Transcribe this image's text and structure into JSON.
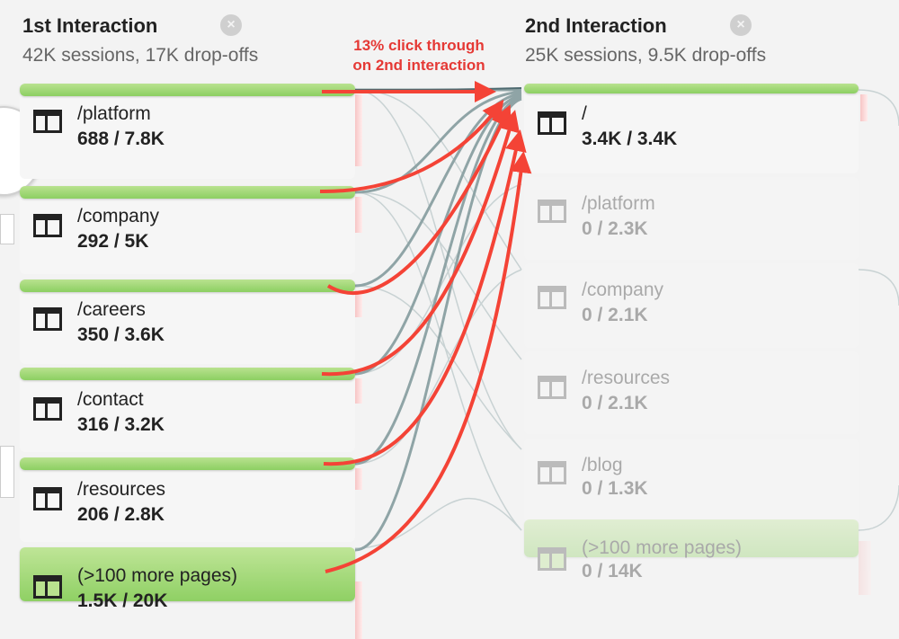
{
  "columns": [
    {
      "title": "1st Interaction",
      "subtitle": "42K sessions, 17K drop-offs"
    },
    {
      "title": "2nd Interaction",
      "subtitle": "25K sessions, 9.5K drop-offs"
    }
  ],
  "annotation": {
    "line1": "13% click through",
    "line2": "on 2nd interaction",
    "color": "#e53935"
  },
  "first_nodes": [
    {
      "label": "/platform",
      "stats": "688 / 7.8K"
    },
    {
      "label": "/company",
      "stats": "292 / 5K"
    },
    {
      "label": "/careers",
      "stats": "350 / 3.6K"
    },
    {
      "label": "/contact",
      "stats": "316 / 3.2K"
    },
    {
      "label": "/resources",
      "stats": "206 / 2.8K"
    },
    {
      "label": "(>100 more pages)",
      "stats": "1.5K / 20K"
    }
  ],
  "second_nodes": [
    {
      "label": "/",
      "stats": "3.4K / 3.4K"
    },
    {
      "label": "/platform",
      "stats": "0 / 2.3K"
    },
    {
      "label": "/company",
      "stats": "0 / 2.1K"
    },
    {
      "label": "/resources",
      "stats": "0 / 2.1K"
    },
    {
      "label": "/blog",
      "stats": "0 / 1.3K"
    },
    {
      "label": "(>100 more pages)",
      "stats": "0 / 14K"
    }
  ],
  "icons": {
    "node": "page-layout-icon",
    "close": "close-circle-icon",
    "nav": "chevron-right-icon"
  },
  "colors": {
    "bar_green": "#8ccf62",
    "drop_red": "#f7c5c5",
    "flow_gray": "#8fa4a6",
    "arrow_red": "#f44336"
  }
}
